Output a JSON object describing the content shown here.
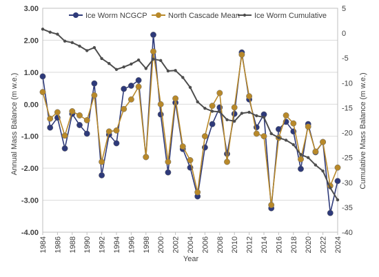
{
  "chart_data": {
    "type": "line",
    "xlabel": "Year",
    "ylabel_left": "Annual Mass Balance (m w.e.)",
    "ylabel_right": "Cumulative Mass Balance (m w.e.)",
    "xlim": [
      1984,
      2024
    ],
    "ylim_left": [
      -4.0,
      3.0
    ],
    "ylim_right": [
      -40,
      5
    ],
    "grid": true,
    "legend_position": "top",
    "x": [
      1984,
      1985,
      1986,
      1987,
      1988,
      1989,
      1990,
      1991,
      1992,
      1993,
      1994,
      1995,
      1996,
      1997,
      1998,
      1999,
      2000,
      2001,
      2002,
      2003,
      2004,
      2005,
      2006,
      2007,
      2008,
      2009,
      2010,
      2011,
      2012,
      2013,
      2014,
      2015,
      2016,
      2017,
      2018,
      2019,
      2020,
      2021,
      2022,
      2023,
      2024
    ],
    "x_tick_labels": [
      "1984",
      "1986",
      "1988",
      "1990",
      "1992",
      "1994",
      "1996",
      "1998",
      "2000",
      "2002",
      "2004",
      "2006",
      "2008",
      "2010",
      "2012",
      "2014",
      "2016",
      "2018",
      "2020",
      "2022",
      "2024"
    ],
    "y_left_tick_labels": [
      "3.00",
      "2.00",
      "1.00",
      "0.00",
      "-1.00",
      "-2.00",
      "-3.00",
      "-4.00"
    ],
    "y_right_tick_labels": [
      "5",
      "0",
      "-5",
      "-10",
      "-15",
      "-20",
      "-25",
      "-30",
      "-35",
      "-40"
    ],
    "series": [
      {
        "name": "Ice Worm NCGCP",
        "axis": "left",
        "color": "#2e3a7a",
        "values": [
          0.87,
          -0.73,
          -0.42,
          -1.38,
          -0.3,
          -0.65,
          -0.92,
          0.65,
          -2.22,
          -0.95,
          -1.22,
          0.48,
          0.58,
          0.75,
          -1.65,
          2.17,
          -0.32,
          -2.13,
          0.05,
          -1.4,
          -1.98,
          -2.88,
          -1.35,
          -0.62,
          -0.1,
          -1.55,
          -0.3,
          1.62,
          0.15,
          -0.72,
          -0.32,
          -3.25,
          -0.78,
          -0.55,
          -0.85,
          -2.02,
          -0.62,
          -1.5,
          -1.18,
          -3.4,
          -2.4
        ]
      },
      {
        "name": "North Cascade Mean",
        "axis": "left",
        "color": "#b8892a",
        "values": [
          0.38,
          -0.45,
          -0.25,
          -0.98,
          -0.22,
          -0.35,
          -0.5,
          0.28,
          -1.8,
          -0.85,
          -0.82,
          -0.15,
          0.15,
          0.55,
          -1.65,
          1.65,
          0.0,
          -1.8,
          0.18,
          -1.32,
          -1.75,
          -2.75,
          -1.0,
          -0.05,
          0.35,
          -1.8,
          -0.1,
          1.55,
          0.25,
          -0.92,
          -1.0,
          -3.15,
          -1.05,
          -0.35,
          -0.6,
          -1.72,
          -0.7,
          -1.48,
          -1.18,
          -2.55,
          -1.98
        ]
      },
      {
        "name": "Ice Worm Cumulative",
        "axis": "right",
        "color": "#4d4d4d",
        "values": [
          0.8,
          0.2,
          -0.2,
          -1.6,
          -1.9,
          -2.6,
          -3.5,
          -2.9,
          -5.1,
          -6.1,
          -7.3,
          -6.8,
          -6.2,
          -5.4,
          -7.1,
          -5.2,
          -5.5,
          -7.6,
          -7.5,
          -8.9,
          -10.9,
          -13.8,
          -15.1,
          -15.7,
          -15.8,
          -17.4,
          -17.7,
          -16.1,
          -15.9,
          -16.6,
          -16.9,
          -20.2,
          -21.0,
          -21.5,
          -22.4,
          -24.4,
          -25.0,
          -26.5,
          -27.7,
          -31.1,
          -33.5
        ]
      }
    ]
  }
}
